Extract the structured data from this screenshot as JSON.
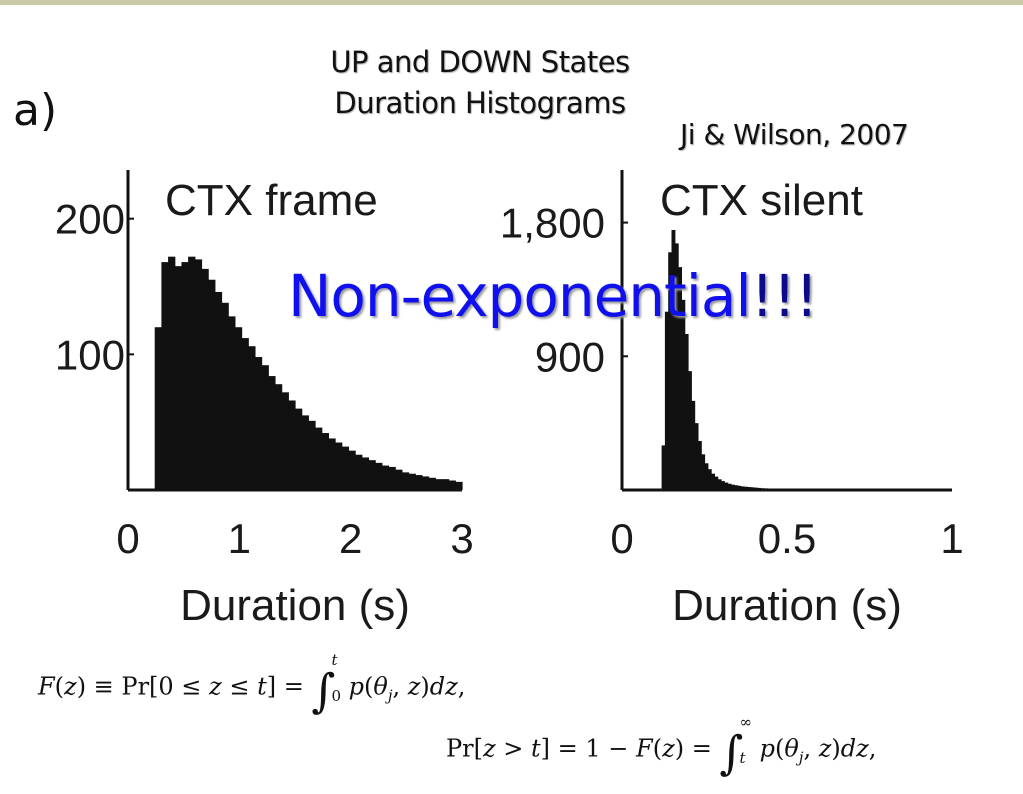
{
  "title_line1": "UP and DOWN States",
  "title_line2": "Duration Histograms",
  "panel_label": "a)",
  "citation": "Ji & Wilson, 2007",
  "annotation_main": "Non-exponential",
  "annotation_bang": "!!!",
  "equations": {
    "eq1": "F(z) ≡ Pr[0 ≤ z ≤ t] = ∫₀ᵗ p(θⱼ, z)dz,",
    "eq2": "Pr[z > t] = 1 − F(z) = ∫ₜ^∞ p(θⱼ, z)dz,"
  },
  "colors": {
    "bars": "#111111",
    "annotation": "#1010ee",
    "topbar": "#c9caa6"
  },
  "chart_data": [
    {
      "type": "bar",
      "title": "CTX frame",
      "xlabel": "Duration (s)",
      "ylabel": "",
      "xlim": [
        0,
        3
      ],
      "ylim": [
        0,
        230
      ],
      "xticks": [
        0,
        1,
        2,
        3
      ],
      "xtick_labels": [
        "0",
        "1",
        "2",
        "3"
      ],
      "yticks": [
        100,
        200
      ],
      "ytick_labels": [
        "100",
        "200"
      ],
      "bin_width": 0.06,
      "x": [
        0.03,
        0.09,
        0.15,
        0.21,
        0.27,
        0.33,
        0.39,
        0.45,
        0.51,
        0.57,
        0.63,
        0.69,
        0.75,
        0.81,
        0.87,
        0.93,
        0.99,
        1.05,
        1.11,
        1.17,
        1.23,
        1.29,
        1.35,
        1.41,
        1.47,
        1.53,
        1.59,
        1.65,
        1.71,
        1.77,
        1.83,
        1.89,
        1.95,
        2.01,
        2.07,
        2.13,
        2.19,
        2.25,
        2.31,
        2.37,
        2.43,
        2.49,
        2.55,
        2.61,
        2.67,
        2.73,
        2.79,
        2.85,
        2.91,
        2.97
      ],
      "values": [
        0,
        0,
        0,
        0,
        120,
        168,
        172,
        165,
        168,
        172,
        170,
        163,
        155,
        146,
        138,
        128,
        120,
        112,
        106,
        98,
        92,
        84,
        78,
        72,
        66,
        60,
        55,
        51,
        46,
        42,
        38,
        35,
        32,
        29,
        26,
        24,
        22,
        20,
        18,
        17,
        15,
        13,
        12,
        11,
        10,
        9,
        8,
        8,
        7,
        6
      ]
    },
    {
      "type": "bar",
      "title": "CTX silent",
      "xlabel": "Duration (s)",
      "ylabel": "",
      "xlim": [
        0,
        1
      ],
      "ylim": [
        0,
        2100
      ],
      "xticks": [
        0,
        0.5,
        1
      ],
      "xtick_labels": [
        "0",
        "0.5",
        "1"
      ],
      "yticks": [
        900,
        1800
      ],
      "ytick_labels": [
        "900",
        "1,800"
      ],
      "bin_width": 0.01,
      "x": [
        0.005,
        0.015,
        0.025,
        0.035,
        0.045,
        0.055,
        0.065,
        0.075,
        0.085,
        0.095,
        0.105,
        0.115,
        0.125,
        0.135,
        0.145,
        0.155,
        0.165,
        0.175,
        0.185,
        0.195,
        0.205,
        0.215,
        0.225,
        0.235,
        0.245,
        0.255,
        0.265,
        0.275,
        0.285,
        0.295,
        0.305,
        0.315,
        0.325,
        0.335,
        0.345,
        0.355,
        0.365,
        0.375,
        0.385,
        0.395,
        0.405,
        0.415,
        0.425,
        0.435,
        0.445,
        0.455,
        0.465,
        0.475,
        0.485,
        0.495,
        0.505,
        0.515,
        0.525,
        0.535
      ],
      "values": [
        0,
        0,
        0,
        0,
        0,
        0,
        0,
        0,
        0,
        0,
        0,
        0,
        300,
        1200,
        1600,
        1750,
        1660,
        1500,
        1280,
        1050,
        800,
        600,
        450,
        330,
        240,
        180,
        140,
        110,
        90,
        72,
        60,
        50,
        42,
        36,
        32,
        28,
        24,
        22,
        20,
        18,
        16,
        14,
        12,
        11,
        10,
        9,
        8,
        8,
        7,
        6,
        6,
        5,
        5,
        4
      ]
    }
  ]
}
